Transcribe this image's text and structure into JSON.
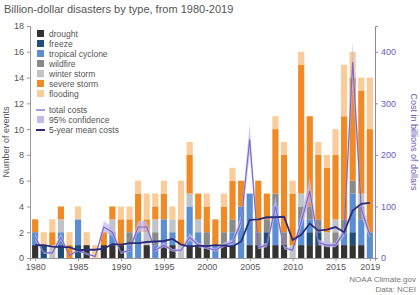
{
  "chart_data": {
    "type": "bar",
    "title": "Billion-dollar disasters by type, from 1980-2019",
    "y_label": "Number of events",
    "y2_label": "Cost in billions of dollars",
    "annotations": [
      "NOAA Climate.gov",
      "Data: NCEI"
    ],
    "stacked": true,
    "grid": false,
    "legend": "upper left",
    "x": [
      1980,
      1981,
      1982,
      1983,
      1984,
      1985,
      1986,
      1987,
      1988,
      1989,
      1990,
      1991,
      1992,
      1993,
      1994,
      1995,
      1996,
      1997,
      1998,
      1999,
      2000,
      2001,
      2002,
      2003,
      2004,
      2005,
      2006,
      2007,
      2008,
      2009,
      2010,
      2011,
      2012,
      2013,
      2014,
      2015,
      2016,
      2017,
      2018,
      2019
    ],
    "xlim": [
      1979.4,
      2019.6
    ],
    "xticks": [
      1980,
      1985,
      1990,
      1995,
      2000,
      2005,
      2010,
      2015,
      2019
    ],
    "ylim": [
      0,
      18
    ],
    "yticks": [
      0,
      2,
      4,
      6,
      8,
      10,
      12,
      14,
      16,
      18
    ],
    "y2lim": [
      0,
      450
    ],
    "y2ticks": [
      0,
      100,
      200,
      300,
      400
    ],
    "series": [
      {
        "name": "drought",
        "type": "bar",
        "color": "#333333",
        "values": [
          1,
          0,
          0,
          0,
          0,
          0,
          1,
          0,
          1,
          1,
          1,
          0,
          0,
          1,
          0,
          1,
          1,
          0,
          1,
          1,
          1,
          0,
          1,
          1,
          0,
          1,
          1,
          1,
          1,
          1,
          0,
          1,
          1,
          1,
          1,
          1,
          1,
          1,
          1,
          0
        ]
      },
      {
        "name": "freeze",
        "type": "bar",
        "color": "#1f4e79",
        "values": [
          0,
          1,
          0,
          1,
          0,
          1,
          0,
          0,
          0,
          0,
          0,
          0,
          0,
          0,
          0,
          0,
          0,
          0,
          0,
          0,
          0,
          0,
          0,
          0,
          0,
          0,
          0,
          1,
          0,
          0,
          0,
          0,
          1,
          1,
          0,
          0,
          0,
          1,
          0,
          0
        ]
      },
      {
        "name": "tropical cyclone",
        "type": "bar",
        "color": "#5b8fd1",
        "values": [
          1,
          0,
          0,
          1,
          0,
          2,
          0,
          0,
          0,
          1,
          0,
          1,
          2,
          0,
          1,
          2,
          1,
          0,
          3,
          1,
          0,
          1,
          0,
          1,
          4,
          4,
          0,
          0,
          3,
          0,
          0,
          2,
          1,
          0,
          0,
          0,
          1,
          3,
          2,
          2
        ]
      },
      {
        "name": "wildfire",
        "type": "bar",
        "color": "#8a8a8a",
        "values": [
          0,
          0,
          0,
          0,
          0,
          0,
          0,
          0,
          0,
          0,
          0,
          1,
          0,
          0,
          1,
          0,
          0,
          0,
          0,
          0,
          1,
          0,
          1,
          1,
          0,
          0,
          1,
          1,
          1,
          1,
          0,
          1,
          1,
          1,
          0,
          1,
          1,
          1,
          1,
          0
        ]
      },
      {
        "name": "winter storm",
        "type": "bar",
        "color": "#c0c4c8",
        "values": [
          0,
          0,
          1,
          1,
          0,
          0,
          0,
          0,
          0,
          1,
          0,
          0,
          0,
          1,
          1,
          0,
          1,
          1,
          1,
          1,
          0,
          0,
          0,
          0,
          0,
          0,
          0,
          0,
          0,
          0,
          1,
          1,
          0,
          0,
          1,
          1,
          0,
          0,
          1,
          0
        ]
      },
      {
        "name": "severe storm",
        "type": "bar",
        "color": "#f08a24",
        "values": [
          1,
          0,
          1,
          1,
          1,
          0,
          0,
          0,
          1,
          1,
          2,
          1,
          3,
          1,
          1,
          2,
          0,
          2,
          3,
          2,
          2,
          2,
          2,
          3,
          2,
          0,
          4,
          2,
          5,
          6,
          4,
          10,
          7,
          5,
          5,
          5,
          8,
          8,
          8,
          8
        ]
      },
      {
        "name": "flooding",
        "type": "bar",
        "color": "#f9cc9a",
        "values": [
          0,
          1,
          1,
          0,
          1,
          1,
          1,
          1,
          0,
          0,
          1,
          1,
          1,
          2,
          1,
          1,
          1,
          3,
          1,
          0,
          1,
          0,
          1,
          1,
          0,
          0,
          0,
          0,
          1,
          1,
          1,
          1,
          0,
          1,
          1,
          2,
          4,
          2,
          1,
          4
        ]
      },
      {
        "name": "total costs",
        "type": "line",
        "axis": "y2",
        "color": "#7a68c8",
        "values": [
          40,
          10,
          10,
          40,
          5,
          15,
          8,
          3,
          60,
          50,
          10,
          15,
          60,
          60,
          15,
          25,
          15,
          15,
          40,
          25,
          20,
          15,
          25,
          30,
          70,
          230,
          20,
          25,
          100,
          20,
          15,
          70,
          130,
          30,
          25,
          25,
          50,
          380,
          95,
          45
        ]
      },
      {
        "name": "95% confidence",
        "type": "band",
        "axis": "y2",
        "color": "#c4b8ec",
        "lower": [
          34,
          8,
          8,
          34,
          4,
          12,
          6,
          2,
          51,
          42,
          8,
          12,
          51,
          51,
          12,
          21,
          12,
          12,
          34,
          21,
          17,
          12,
          21,
          25,
          60,
          200,
          17,
          21,
          85,
          17,
          12,
          60,
          110,
          25,
          21,
          21,
          42,
          330,
          80,
          38
        ],
        "upper": [
          48,
          12,
          12,
          48,
          6,
          18,
          10,
          4,
          72,
          60,
          12,
          18,
          72,
          72,
          18,
          30,
          18,
          18,
          48,
          30,
          24,
          18,
          30,
          36,
          84,
          260,
          24,
          30,
          120,
          24,
          18,
          84,
          156,
          36,
          30,
          30,
          60,
          420,
          114,
          54
        ]
      },
      {
        "name": "5-year mean costs",
        "type": "line",
        "axis": "y2",
        "color": "#2b2d7a",
        "values": [
          25,
          25,
          22,
          21,
          21,
          15,
          16,
          16,
          18,
          27,
          26,
          29,
          29,
          31,
          32,
          33,
          37,
          26,
          22,
          24,
          23,
          25,
          24,
          22,
          32,
          74,
          75,
          79,
          79,
          80,
          35,
          45,
          67,
          53,
          55,
          60,
          50,
          92,
          105,
          107
        ]
      }
    ]
  }
}
